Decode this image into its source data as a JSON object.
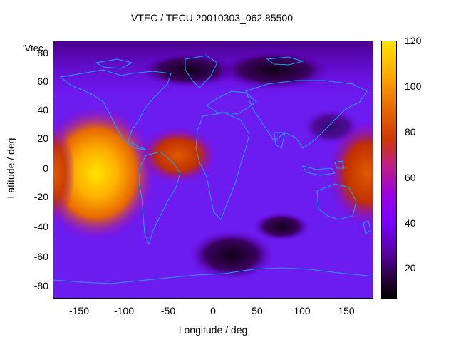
{
  "title": "VTEC / TECU 20010303_062.85500",
  "overlay_label": "'Vtec_",
  "xlabel": "Longitude / deg",
  "ylabel": "Latitude / deg",
  "x_ticks": [
    "-150",
    "-100",
    "-50",
    "0",
    "50",
    "100",
    "150"
  ],
  "y_ticks": [
    "80",
    "60",
    "40",
    "20",
    "0",
    "-20",
    "-40",
    "-60",
    "-80"
  ],
  "colorbar_ticks": [
    "120",
    "100",
    "80",
    "60",
    "40",
    "20"
  ],
  "colors": {
    "coastline": "#1ea0ff",
    "low": "#000000",
    "mid": "#7a00ff",
    "high": "#ffe300"
  },
  "map_data": {
    "xlim": [
      -180,
      180
    ],
    "ylim": [
      -90,
      90
    ],
    "clim": [
      7,
      120
    ]
  }
}
